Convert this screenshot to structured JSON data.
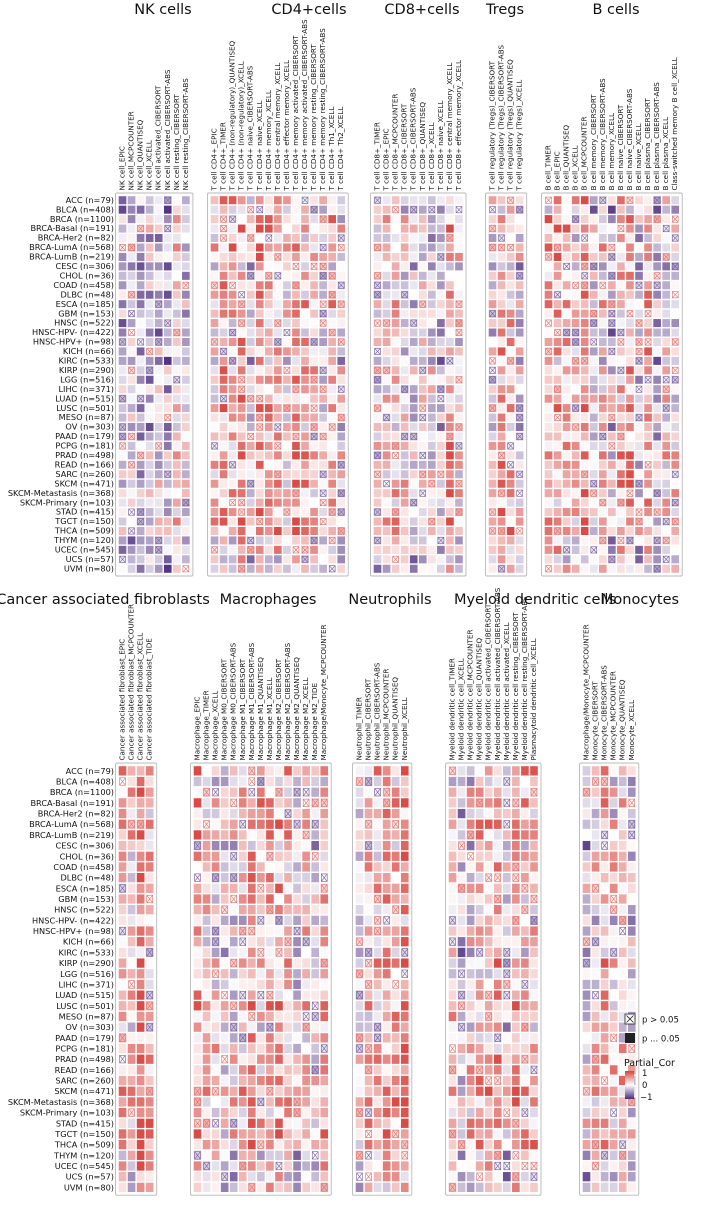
{
  "chart_data": {
    "type": "heatmap",
    "value_range": [
      -1,
      1
    ],
    "cancer_types": [
      "ACC (n=79)",
      "BLCA (n=408)",
      "BRCA (n=1100)",
      "BRCA-Basal (n=191)",
      "BRCA-Her2 (n=82)",
      "BRCA-LumA (n=568)",
      "BRCA-LumB (n=219)",
      "CESC (n=306)",
      "CHOL (n=36)",
      "COAD (n=458)",
      "DLBC (n=48)",
      "ESCA (n=185)",
      "GBM (n=153)",
      "HNSC (n=522)",
      "HNSC-HPV- (n=422)",
      "HNSC-HPV+ (n=98)",
      "KICH (n=66)",
      "KIRC (n=533)",
      "KIRP (n=290)",
      "LGG (n=516)",
      "LIHC (n=371)",
      "LUAD (n=515)",
      "LUSC (n=501)",
      "MESO (n=87)",
      "OV (n=303)",
      "PAAD (n=179)",
      "PCPG (n=181)",
      "PRAD (n=498)",
      "READ (n=166)",
      "SARC (n=260)",
      "SKCM (n=471)",
      "SKCM-Metastasis (n=368)",
      "SKCM-Primary (n=103)",
      "STAD (n=415)",
      "TGCT (n=150)",
      "THCA (n=509)",
      "THYM (n=120)",
      "UCEC (n=545)",
      "UCS (n=57)",
      "UVM (n=80)"
    ],
    "panels": [
      {
        "title": "NK cells",
        "columns": [
          "NK cell_EPIC",
          "NK cell_MCPCOUNTER",
          "NK cell_QUANTISEQ",
          "NK cell_XCELL",
          "NK cell activated_CIBERSORT",
          "NK cell activated_CIBERSORT-ABS",
          "NK cell resting_CIBERSORT",
          "NK cell resting_CIBERSORT-ABS"
        ],
        "bias": -0.05
      },
      {
        "title": "CD4+cells",
        "columns": [
          "T cell CD4+_EPIC",
          "T cell CD4+_TIMER",
          "T cell CD4+ (non-regulatory)_QUANTISEQ",
          "T cell CD4+ (non-regulatory)_XCELL",
          "T cell CD4+ naive_CIBERSORT-ABS",
          "T cell CD4+ naive_XCELL",
          "T cell CD4+ memory_XCELL",
          "T cell CD4+ central memory_XCELL",
          "T cell CD4+ effector memory_XCELL",
          "T cell CD4+ memory activated_CIBERSORT",
          "T cell CD4+ memory activated_CIBERSORT-ABS",
          "T cell CD4+ memory resting_CIBERSORT",
          "T cell CD4+ memory resting_CIBERSORT-ABS",
          "T cell CD4+ Th1_XCELL",
          "T cell CD4+ Th2_XCELL"
        ],
        "bias": 0.15
      },
      {
        "title": "CD8+cells",
        "columns": [
          "T cell CD8+_TIMER",
          "T cell CD8+_EPIC",
          "T cell CD8+_MCPCOUNTER",
          "T cell CD8+_CIBERSORT",
          "T cell CD8+_CIBERSORT-ABS",
          "T cell CD8+_QUANTISEQ",
          "T cell CD8+_XCELL",
          "T cell CD8+ naive_XCELL",
          "T cell CD8+ central memory_XCELL",
          "T cell CD8+ effector memory_XCELL"
        ],
        "bias": 0.05
      },
      {
        "title": "Tregs",
        "columns": [
          "T cell regulatory (Tregs)_CIBERSORT",
          "T cell regulatory (Tregs)_CIBERSORT-ABS",
          "T cell regulatory (Tregs)_QUANTISEQ",
          "T cell regulatory (Tregs)_XCELL"
        ],
        "bias": 0.25
      },
      {
        "title": "B cells",
        "columns": [
          "B cell_TIMER",
          "B cell_EPIC",
          "B cell_QUANTISEQ",
          "B cell_XCELL",
          "B cell_MCPCOUNTER",
          "B cell memory_CIBERSORT",
          "B cell memory_CIBERSORT-ABS",
          "B cell memory_XCELL",
          "B cell naive_CIBERSORT",
          "B cell naive_CIBERSORT-ABS",
          "B cell naive_XCELL",
          "B cell plasma_CIBERSORT",
          "B cell plasma_CIBERSORT-ABS",
          "B cell plasma_XCELL",
          "Class-switched memory B cell_XCELL"
        ],
        "bias": 0.1
      },
      {
        "title": "Cancer associated fibroblasts",
        "columns": [
          "Cancer associated fibroblast_EPIC",
          "Cancer associated fibroblast_MCPCOUNTER",
          "Cancer associated fibroblast_XCELL",
          "Cancer associated fibroblast_TIDE"
        ],
        "bias": 0.4
      },
      {
        "title": "Macrophages",
        "columns": [
          "Macrophage_EPIC",
          "Macrophage_TIMER",
          "Macrophage_XCELL",
          "Macrophage M0_CIBERSORT",
          "Macrophage M0_CIBERSORT-ABS",
          "Macrophage M1_CIBERSORT",
          "Macrophage M1_CIBERSORT-ABS",
          "Macrophage M1_QUANTISEQ",
          "Macrophage M1_XCELL",
          "Macrophage M2_CIBERSORT",
          "Macrophage M2_CIBERSORT-ABS",
          "Macrophage M2_QUANTISEQ",
          "Macrophage M2_XCELL",
          "Macrophage M2_TIDE",
          "Macrophage/Monocyte_MCPCOUNTER"
        ],
        "bias": 0.2
      },
      {
        "title": "Neutrophils",
        "columns": [
          "Neutrophil_TIMER",
          "Neutrophil_CIBERSORT",
          "Neutrophil_CIBERSORT-ABS",
          "Neutrophil_MCPCOUNTER",
          "Neutrophil_QUANTISEQ",
          "Neutrophil_XCELL"
        ],
        "bias": 0.2
      },
      {
        "title": "Myeloid dendritic cells",
        "columns": [
          "Myeloid dendritic cell_TIMER",
          "Myeloid dendritic cell_XCELL",
          "Myeloid dendritic cell_MCPCOUNTER",
          "Myeloid dendritic cell_QUANTISEQ",
          "Myeloid dendritic cell activated_CIBERSORT",
          "Myeloid dendritic cell activated_CIBERSORT-ABS",
          "Myeloid dendritic cell activated_XCELL",
          "Myeloid dendritic cell resting_CIBERSORT",
          "Myeloid dendritic cell resting_CIBERSORT-ABS",
          "Plasmacytoid dendritic cell_XCELL"
        ],
        "bias": 0.15
      },
      {
        "title": "Monocytes",
        "columns": [
          "Macrophage/Monocyte_MCPCOUNTER",
          "Monocyte_CIBERSORT",
          "Monocyte_CIBERSORT-ABS",
          "Monocyte_MCPCOUNTER",
          "Monocyte_QUANTISEQ",
          "Monocyte_XCELL"
        ],
        "bias": 0.05
      }
    ],
    "legend": {
      "p_gt": "p > 0.05",
      "p_le": "p ... 0.05",
      "title": "Partial_Cor",
      "ticks": [
        "1",
        "0",
        "−1"
      ]
    },
    "colors": {
      "high": "#d7423c",
      "mid": "#ffffff",
      "low": "#4b2a7e"
    }
  }
}
